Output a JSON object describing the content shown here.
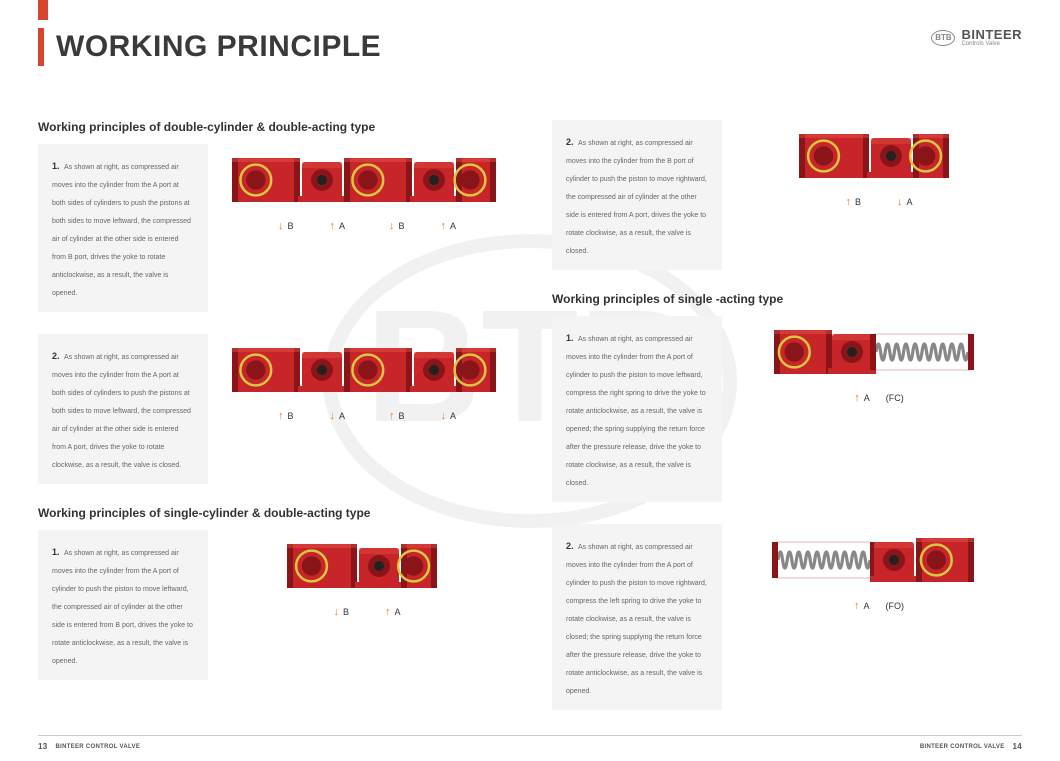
{
  "header": {
    "title": "WORKING PRINCIPLE",
    "brand_badge": "BTB",
    "brand_name": "BINTEER",
    "brand_sub": "Controls Valve"
  },
  "colors": {
    "accent": "#d94330",
    "actuator_body": "#c8252a",
    "actuator_dark": "#8a1518",
    "actuator_highlight": "#e85a48",
    "piston_yellow": "#d8c840",
    "steel": "#9a9a9a",
    "spring": "#888888",
    "arrow": "#e08030",
    "card_bg": "#f4f4f4"
  },
  "sections": [
    {
      "id": "dc_da",
      "title": "Working principles of double-cylinder & double-acting type",
      "items": [
        {
          "num": "1.",
          "desc": "As shown at right, as compressed air moves into the cylinder from the A port at both sides of cylinders to push the pistons at both sides to move leftward, the compressed air of cylinder at the other side is entered from B port, drives the yoke to rotate anticlockwise, as a result, the valve is opened.",
          "diagram": "double_cyl",
          "ports": [
            {
              "dir": "down",
              "label": "B"
            },
            {
              "dir": "up",
              "label": "A"
            },
            {
              "dir": "down",
              "label": "B"
            },
            {
              "dir": "up",
              "label": "A"
            }
          ]
        },
        {
          "num": "2.",
          "desc": "As shown at right, as compressed air moves into the cylinder from the A port at both sides of cylinders to push the pistons at both sides to move leftward, the compressed air of cylinder at the other side is entered from A port, drives the yoke to rotate clockwise, as a result, the valve is closed.",
          "diagram": "double_cyl",
          "ports": [
            {
              "dir": "up",
              "label": "B"
            },
            {
              "dir": "down",
              "label": "A"
            },
            {
              "dir": "up",
              "label": "B"
            },
            {
              "dir": "down",
              "label": "A"
            }
          ]
        }
      ]
    },
    {
      "id": "sc_da",
      "title": "Working principles of single-cylinder & double-acting type",
      "items": [
        {
          "num": "1.",
          "desc": "As shown at right, as compressed air moves into the cylinder from the A port of cylinder to push the piston to move leftward, the compressed air of cylinder at the other side is entered from B port, drives the yoke to rotate anticlockwise, as a result, the valve is opened.",
          "diagram": "single_cyl",
          "ports": [
            {
              "dir": "down",
              "label": "B"
            },
            {
              "dir": "up",
              "label": "A"
            }
          ]
        }
      ]
    },
    {
      "id": "sc_da_right",
      "items": [
        {
          "num": "2.",
          "desc": "As shown at right, as compressed air moves into the cylinder from the B port of cylinder to push the piston to move rightward, the compressed air of cylinder at the other side is entered from A port, drives the yoke to rotate clockwise, as a result, the valve is closed.",
          "diagram": "single_cyl",
          "ports": [
            {
              "dir": "up",
              "label": "B"
            },
            {
              "dir": "down",
              "label": "A"
            }
          ]
        }
      ]
    },
    {
      "id": "sa",
      "title": "Working principles of single -acting type",
      "items": [
        {
          "num": "1.",
          "desc": "As shown at right, as compressed air moves into the cylinder from the A port of cylinder to push the piston to move leftward, compress the right spring to drive the yoke to rotate anticlockwise, as a result, the valve is opened; the spring supplying the return force after the pressure release, drive the yoke to rotate clockwise, as a result, the valve is closed.",
          "diagram": "spring_right",
          "ports": [
            {
              "dir": "up",
              "label": "A"
            }
          ],
          "suffix": "(FC)"
        },
        {
          "num": "2.",
          "desc": "As shown at right, as compressed air moves into the cylinder from the A port of cylinder to push the piston to move rightward, compress the left spring to drive the yoke to rotate clockwise, as a result, the valve is closed; the spring supplying the return force after the pressure release, drive the yoke to rotate anticlockwise, as a result, the valve is opened.",
          "diagram": "spring_left",
          "ports": [
            {
              "dir": "up",
              "label": "A"
            }
          ],
          "suffix": "(FO)"
        }
      ]
    }
  ],
  "footer": {
    "left_page": "13",
    "left_text": "BINTEER CONTROL VALVE",
    "right_text": "BINTEER CONTROL VALVE",
    "right_page": "14"
  }
}
